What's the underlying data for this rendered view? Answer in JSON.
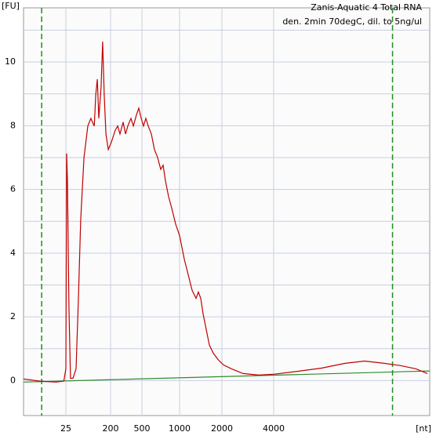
{
  "chart_data": {
    "type": "line",
    "title": "Zanis-Aquatic 4 Total RNA",
    "subtitle": "den. 2min 70degC, dil. to 5ng/ul",
    "y_label": "[FU]",
    "x_label": "[nt]",
    "xlim": [
      4,
      30000
    ],
    "xticks": [
      25,
      200,
      500,
      1000,
      2000,
      4000
    ],
    "ylim": [
      -1.1,
      11.7
    ],
    "yticks": [
      0,
      2,
      4,
      6,
      8,
      10
    ],
    "minor_yticks": [
      1,
      3,
      5,
      7,
      9,
      11
    ],
    "grid": true,
    "markers": {
      "color": "#1f8f1f",
      "x": [
        13,
        23800
      ]
    },
    "series": [
      {
        "color": "#c00000",
        "x": [
          4,
          12,
          20,
          24,
          25,
          28,
          31,
          37,
          43,
          53,
          65,
          74,
          83,
          96,
          111,
          123,
          129,
          136,
          142,
          148,
          154,
          163,
          169,
          175,
          182,
          191,
          208,
          245,
          268,
          290,
          320,
          343,
          365,
          395,
          418,
          448,
          470,
          493,
          521,
          552,
          583,
          625,
          667,
          708,
          750,
          781,
          813,
          854,
          896,
          948,
          1000,
          1111,
          1204,
          1296,
          1389,
          1444,
          1500,
          1555,
          1629,
          1703,
          1796,
          1907,
          2061,
          2364,
          2818,
          3424,
          4131,
          8052,
          11973,
          15894,
          19161,
          22429,
          25043,
          27657,
          29617
        ],
        "values": [
          0.05,
          -0.02,
          -0.05,
          -0.02,
          0.37,
          7.13,
          6.27,
          2.33,
          0.07,
          0.07,
          0.37,
          2.58,
          5.04,
          7.0,
          7.99,
          8.23,
          8.11,
          7.99,
          8.97,
          9.46,
          8.23,
          9.21,
          10.64,
          8.97,
          7.74,
          7.25,
          7.49,
          7.86,
          7.99,
          7.74,
          8.11,
          7.74,
          7.99,
          8.23,
          7.99,
          8.35,
          8.55,
          8.23,
          7.99,
          8.23,
          7.99,
          7.74,
          7.25,
          7.0,
          6.63,
          6.76,
          6.27,
          5.77,
          5.41,
          4.91,
          4.55,
          3.81,
          3.32,
          2.83,
          2.58,
          2.78,
          2.58,
          2.09,
          1.6,
          1.11,
          0.86,
          0.66,
          0.49,
          0.37,
          0.22,
          0.17,
          0.2,
          0.29,
          0.39,
          0.54,
          0.61,
          0.54,
          0.47,
          0.37,
          0.22
        ]
      },
      {
        "color": "#2e8b2e",
        "x": [
          4,
          30000
        ],
        "values": [
          -0.05,
          0.3
        ]
      }
    ]
  }
}
